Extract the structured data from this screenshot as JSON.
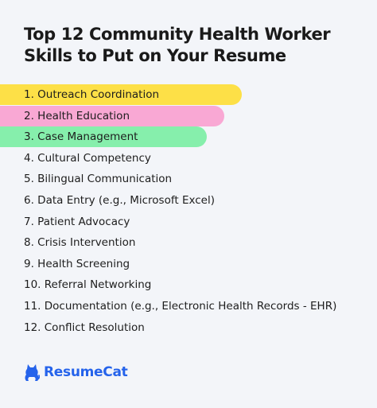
{
  "title": {
    "line1": "Top 12 Community Health Worker",
    "line2": "Skills to Put on Your Resume"
  },
  "skills": [
    "1. Outreach Coordination",
    "2. Health Education",
    "3. Case Management",
    "4. Cultural Competency",
    "5. Bilingual Communication",
    "6. Data Entry (e.g., Microsoft Excel)",
    "7. Patient Advocacy",
    "8. Crisis Intervention",
    "9. Health Screening",
    "10. Referral Networking",
    "11. Documentation (e.g., Electronic Health Records - EHR)",
    "12. Conflict Resolution"
  ],
  "highlight_colors": [
    "#fde047",
    "#f9a8d4",
    "#86efac"
  ],
  "brand": {
    "name": "ResumeCat",
    "icon": "cat-icon",
    "color": "#2563eb"
  }
}
